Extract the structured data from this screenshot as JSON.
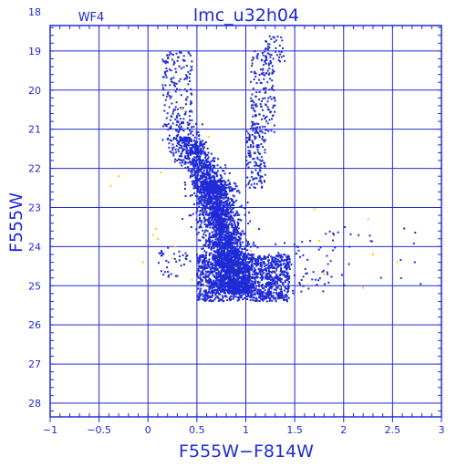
{
  "chart_data": {
    "type": "scatter",
    "title": "lmc_u32h04",
    "panel_label": "WF4",
    "xlabel": "F555W−F814W",
    "ylabel": "F555W",
    "xlim": [
      -1,
      3
    ],
    "ylim": [
      28.35,
      18.35
    ],
    "y_inverted": true,
    "grid": true,
    "x_ticks": [
      -1,
      -0.5,
      0,
      0.5,
      1,
      1.5,
      2,
      2.5,
      3
    ],
    "x_tick_labels": [
      "−1",
      "−0.5",
      "0",
      "0.5",
      "1",
      "1.5",
      "2",
      "2.5",
      "3"
    ],
    "y_ticks": [
      18,
      19,
      20,
      21,
      22,
      23,
      24,
      25,
      26,
      27,
      28
    ],
    "y_tick_labels": [
      "18",
      "19",
      "20",
      "21",
      "22",
      "23",
      "24",
      "25",
      "26",
      "27",
      "28"
    ],
    "colors": {
      "axis": "#1f2bd6",
      "grid": "#1f2bd6",
      "stars": "#1f2bd6",
      "flagged": "#f0d000"
    },
    "series": [
      {
        "color": "#1f2bd6",
        "components": [
          {
            "kind": "ms",
            "n": 2300,
            "x0": 0.72,
            "y0": 23.1,
            "slope": 0.09,
            "xspread": 0.1,
            "ymin": 22.3,
            "ymax": 25.2
          },
          {
            "kind": "ms",
            "n": 600,
            "x0": 0.55,
            "y0": 22.0,
            "slope": 0.22,
            "xspread": 0.09,
            "ymin": 21.2,
            "ymax": 22.6
          },
          {
            "kind": "box",
            "n": 1300,
            "x0": 0.5,
            "x1": 1.45,
            "y0": 24.2,
            "y1": 25.4
          },
          {
            "kind": "box",
            "n": 160,
            "x0": 0.15,
            "x1": 0.45,
            "y0": 19.0,
            "y1": 21.0
          },
          {
            "kind": "box",
            "n": 80,
            "x0": 0.2,
            "x1": 0.6,
            "y0": 20.8,
            "y1": 21.7
          },
          {
            "kind": "box",
            "n": 170,
            "x0": 1.05,
            "x1": 1.3,
            "y0": 19.0,
            "y1": 21.1
          },
          {
            "kind": "box",
            "n": 130,
            "x0": 1.0,
            "x1": 1.2,
            "y0": 21.0,
            "y1": 22.5
          },
          {
            "kind": "box",
            "n": 40,
            "x0": 1.2,
            "x1": 1.4,
            "y0": 18.6,
            "y1": 19.3
          },
          {
            "kind": "box",
            "n": 60,
            "x0": 1.3,
            "x1": 1.9,
            "y0": 23.8,
            "y1": 25.2
          },
          {
            "kind": "box",
            "n": 25,
            "x0": 1.8,
            "x1": 2.8,
            "y0": 23.3,
            "y1": 25.3
          },
          {
            "kind": "box",
            "n": 35,
            "x0": 0.1,
            "x1": 0.4,
            "y0": 24.0,
            "y1": 24.8
          }
        ]
      },
      {
        "color": "#f0d000",
        "points": [
          [
            -0.38,
            22.45
          ],
          [
            -0.3,
            22.2
          ],
          [
            -0.05,
            24.4
          ],
          [
            0.05,
            23.7
          ],
          [
            0.08,
            23.55
          ],
          [
            0.1,
            23.8
          ],
          [
            0.13,
            22.1
          ],
          [
            0.25,
            24.3
          ],
          [
            0.28,
            24.0
          ],
          [
            0.35,
            20.5
          ],
          [
            0.45,
            24.85
          ],
          [
            0.6,
            24.95
          ],
          [
            0.62,
            21.2
          ],
          [
            1.3,
            24.6
          ],
          [
            1.7,
            23.05
          ],
          [
            1.75,
            23.85
          ],
          [
            1.8,
            24.7
          ],
          [
            2.25,
            23.3
          ],
          [
            2.3,
            24.2
          ],
          [
            2.55,
            24.4
          ],
          [
            2.2,
            25.05
          ],
          [
            1.05,
            24.1
          ],
          [
            0.9,
            24.55
          ],
          [
            1.35,
            25.05
          ]
        ]
      }
    ]
  }
}
